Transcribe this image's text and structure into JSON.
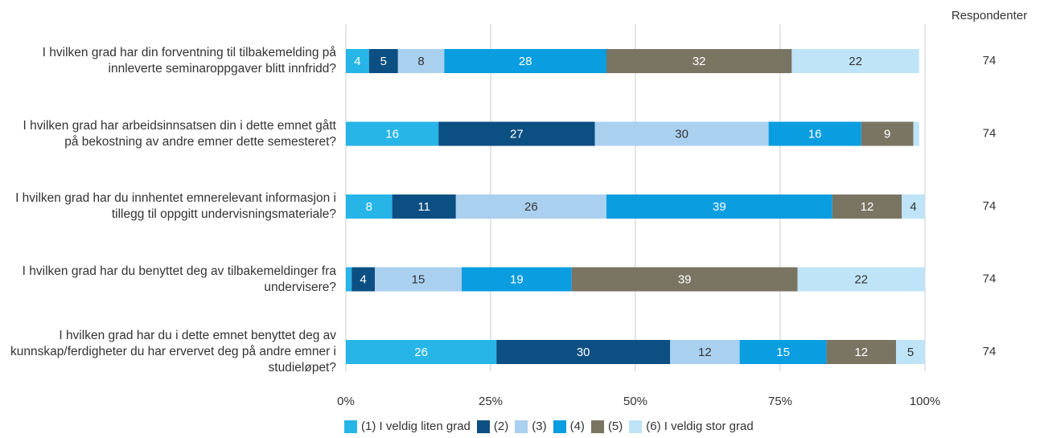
{
  "chart_data": {
    "type": "stacked_bar_horizontal",
    "categories": [
      "I hvilken grad har din forventning til tilbakemelding på innleverte seminaroppgaver blitt innfridd?",
      "I hvilken grad har arbeidsinnsatsen din i dette emnet gått på bekostning av andre emner dette semesteret?",
      "I hvilken grad har du innhentet emnerelevant informasjon i tillegg til oppgitt undervisningsmateriale?",
      "I hvilken grad har du benyttet deg av tilbakemeldinger fra undervisere?",
      "I hvilken grad har du i dette emnet benyttet deg av kunnskap/ferdigheter du har ervervet deg på andre emner i studieløpet?"
    ],
    "series": [
      {
        "name": "(1) I veldig liten grad",
        "color": "#27b5e8",
        "values": [
          4,
          16,
          8,
          1,
          26
        ]
      },
      {
        "name": "(2)",
        "color": "#0c4f82",
        "values": [
          5,
          27,
          11,
          4,
          30
        ]
      },
      {
        "name": "(3)",
        "color": "#aad0f0",
        "values": [
          8,
          30,
          26,
          15,
          12
        ]
      },
      {
        "name": "(4)",
        "color": "#0a9de0",
        "values": [
          28,
          16,
          39,
          19,
          15
        ]
      },
      {
        "name": "(5)",
        "color": "#7a7563",
        "values": [
          32,
          9,
          12,
          39,
          12
        ]
      },
      {
        "name": "(6) I veldig stor grad",
        "color": "#bfe4f8",
        "values": [
          22,
          1,
          4,
          22,
          5
        ]
      }
    ],
    "xlim": [
      0,
      100
    ],
    "xticks": [
      {
        "value": 0,
        "label": "0%"
      },
      {
        "value": 25,
        "label": "25%"
      },
      {
        "value": 50,
        "label": "50%"
      },
      {
        "value": 75,
        "label": "75%"
      },
      {
        "value": 100,
        "label": "100%"
      }
    ],
    "grid": true,
    "respondents": {
      "title": "Respondenter",
      "values": [
        74,
        74,
        74,
        74,
        74
      ]
    }
  }
}
